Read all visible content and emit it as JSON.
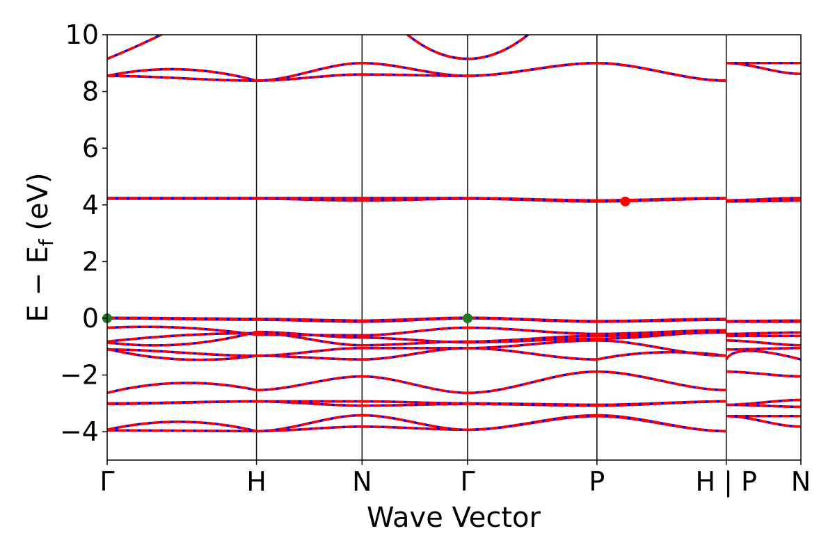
{
  "chart_data": {
    "type": "line",
    "title": "",
    "xlabel": "Wave Vector",
    "ylabel": "E − E_f (eV)",
    "ylim": [
      -5,
      10
    ],
    "y_ticks": [
      -4,
      -2,
      0,
      2,
      4,
      6,
      8,
      10
    ],
    "y_tick_labels": [
      "−4",
      "−2",
      "0",
      "2",
      "4",
      "6",
      "8",
      "10"
    ],
    "x_kpoints": [
      {
        "label": "Γ",
        "x": 0.0
      },
      {
        "label": "H",
        "x": 1.0
      },
      {
        "label": "N",
        "x": 1.707
      },
      {
        "label": "Γ",
        "x": 2.414
      },
      {
        "label": "P",
        "x": 3.28
      },
      {
        "label": "H | P",
        "x": 4.146
      },
      {
        "label": "N",
        "x": 4.646
      }
    ],
    "xlim": [
      0,
      4.646
    ],
    "grid": false,
    "series_colors": {
      "solid": "#0000ff",
      "dashed": "#ff0000"
    },
    "markers": [
      {
        "name": "valence-band-maximum",
        "x": 0.0,
        "y": 0.0,
        "color": "#1f7a1f"
      },
      {
        "name": "valence-band-maximum",
        "x": 2.414,
        "y": 0.0,
        "color": "#1f7a1f"
      },
      {
        "name": "conduction-band-minimum",
        "x": 3.47,
        "y": 4.12,
        "color": "#ff0000"
      }
    ],
    "bands": [
      {
        "segments": [
          [
            [
              0,
              -3.93
            ],
            [
              0.5,
              -3.65
            ],
            [
              1,
              -3.98
            ]
          ],
          [
            [
              1,
              -3.98
            ],
            [
              1.707,
              -3.42
            ]
          ],
          [
            [
              1.707,
              -3.42
            ],
            [
              2.414,
              -3.93
            ]
          ],
          [
            [
              2.414,
              -3.93
            ],
            [
              3.28,
              -3.42
            ]
          ],
          [
            [
              3.28,
              -3.42
            ],
            [
              4.146,
              -3.98
            ]
          ],
          [
            [
              4.146,
              -3.45
            ],
            [
              4.646,
              -3.45
            ]
          ]
        ]
      },
      {
        "segments": [
          [
            [
              0,
              -3.95
            ],
            [
              1,
              -3.98
            ]
          ],
          [
            [
              1,
              -3.98
            ],
            [
              1.707,
              -3.82
            ]
          ],
          [
            [
              1.707,
              -3.82
            ],
            [
              2.414,
              -3.93
            ]
          ],
          [
            [
              2.414,
              -3.93
            ],
            [
              3.28,
              -3.45
            ]
          ],
          [
            [
              3.28,
              -3.45
            ],
            [
              4.146,
              -3.98
            ]
          ],
          [
            [
              4.146,
              -3.45
            ],
            [
              4.646,
              -3.82
            ]
          ]
        ]
      },
      {
        "segments": [
          [
            [
              0,
              -3.0
            ],
            [
              1,
              -2.93
            ]
          ],
          [
            [
              1,
              -2.93
            ],
            [
              1.707,
              -2.93
            ]
          ],
          [
            [
              1.707,
              -2.93
            ],
            [
              2.414,
              -3.0
            ]
          ],
          [
            [
              2.414,
              -3.0
            ],
            [
              3.28,
              -3.05
            ]
          ],
          [
            [
              3.28,
              -3.05
            ],
            [
              4.146,
              -2.93
            ]
          ],
          [
            [
              4.146,
              -3.05
            ],
            [
              4.646,
              -2.88
            ]
          ]
        ]
      },
      {
        "segments": [
          [
            [
              0,
              -3.02
            ],
            [
              1,
              -2.93
            ]
          ],
          [
            [
              1,
              -2.93
            ],
            [
              1.707,
              -3.08
            ]
          ],
          [
            [
              1.707,
              -3.08
            ],
            [
              2.414,
              -3.02
            ]
          ],
          [
            [
              2.414,
              -3.02
            ],
            [
              3.28,
              -3.08
            ]
          ],
          [
            [
              3.28,
              -3.08
            ],
            [
              4.146,
              -2.93
            ]
          ],
          [
            [
              4.146,
              -3.05
            ],
            [
              4.646,
              -3.12
            ]
          ]
        ]
      },
      {
        "segments": [
          [
            [
              0,
              -2.63
            ],
            [
              0.5,
              -2.28
            ],
            [
              1,
              -2.53
            ]
          ],
          [
            [
              1,
              -2.53
            ],
            [
              1.707,
              -2.05
            ]
          ],
          [
            [
              1.707,
              -2.05
            ],
            [
              2.414,
              -2.63
            ]
          ],
          [
            [
              2.414,
              -2.63
            ],
            [
              3.28,
              -1.88
            ]
          ],
          [
            [
              3.28,
              -1.88
            ],
            [
              4.146,
              -2.53
            ]
          ],
          [
            [
              4.146,
              -1.88
            ],
            [
              4.646,
              -2.05
            ]
          ]
        ]
      },
      {
        "segments": [
          [
            [
              0,
              -1.08
            ],
            [
              0.5,
              -1.45
            ],
            [
              1,
              -1.32
            ]
          ],
          [
            [
              1,
              -1.32
            ],
            [
              1.707,
              -1.45
            ]
          ],
          [
            [
              1.707,
              -1.45
            ],
            [
              2.414,
              -1.05
            ]
          ],
          [
            [
              2.414,
              -1.05
            ],
            [
              3.28,
              -1.45
            ]
          ],
          [
            [
              3.28,
              -1.45
            ],
            [
              3.7,
              -1.2
            ],
            [
              4.146,
              -1.32
            ]
          ],
          [
            [
              4.146,
              -1.45
            ],
            [
              4.3,
              -1.15
            ],
            [
              4.646,
              -1.45
            ]
          ]
        ]
      },
      {
        "segments": [
          [
            [
              0,
              -1.1
            ],
            [
              1,
              -1.32
            ]
          ],
          [
            [
              1,
              -1.32
            ],
            [
              1.707,
              -1.05
            ]
          ],
          [
            [
              1.707,
              -1.05
            ],
            [
              2.414,
              -1.05
            ]
          ],
          [
            [
              2.414,
              -1.05
            ],
            [
              3.28,
              -0.78
            ]
          ],
          [
            [
              3.28,
              -0.78
            ],
            [
              4.146,
              -1.32
            ]
          ],
          [
            [
              4.146,
              -1.1
            ],
            [
              4.646,
              -1.05
            ]
          ]
        ]
      },
      {
        "segments": [
          [
            [
              0,
              -0.85
            ],
            [
              0.5,
              -0.92
            ],
            [
              1,
              -0.48
            ]
          ],
          [
            [
              1,
              -0.48
            ],
            [
              1.707,
              -0.68
            ]
          ],
          [
            [
              1.707,
              -0.68
            ],
            [
              2.414,
              -0.85
            ]
          ],
          [
            [
              2.414,
              -0.85
            ],
            [
              3.28,
              -0.72
            ]
          ],
          [
            [
              3.28,
              -0.72
            ],
            [
              4.146,
              -0.48
            ]
          ],
          [
            [
              4.146,
              -0.78
            ],
            [
              4.646,
              -0.95
            ]
          ]
        ]
      },
      {
        "segments": [
          [
            [
              0,
              -0.82
            ],
            [
              0.5,
              -0.6
            ],
            [
              1,
              -0.52
            ]
          ],
          [
            [
              1,
              -0.52
            ],
            [
              1.707,
              -0.95
            ]
          ],
          [
            [
              1.707,
              -0.95
            ],
            [
              2.414,
              -0.82
            ]
          ],
          [
            [
              2.414,
              -0.82
            ],
            [
              3.28,
              -0.62
            ]
          ],
          [
            [
              3.28,
              -0.62
            ],
            [
              4.146,
              -0.5
            ]
          ],
          [
            [
              4.146,
              -0.62
            ],
            [
              4.646,
              -0.62
            ]
          ]
        ]
      },
      {
        "segments": [
          [
            [
              0,
              -0.33
            ],
            [
              0.5,
              -0.33
            ],
            [
              1,
              -0.58
            ]
          ],
          [
            [
              1,
              -0.58
            ],
            [
              1.707,
              -0.6
            ]
          ],
          [
            [
              1.707,
              -0.6
            ],
            [
              2.414,
              -0.33
            ]
          ],
          [
            [
              2.414,
              -0.33
            ],
            [
              3.28,
              -0.55
            ]
          ],
          [
            [
              3.28,
              -0.55
            ],
            [
              4.146,
              -0.42
            ]
          ],
          [
            [
              4.146,
              -0.55
            ],
            [
              4.646,
              -0.5
            ]
          ]
        ]
      },
      {
        "segments": [
          [
            [
              0,
              0.0
            ],
            [
              1,
              -0.05
            ]
          ],
          [
            [
              1,
              -0.05
            ],
            [
              1.707,
              -0.12
            ]
          ],
          [
            [
              1.707,
              -0.12
            ],
            [
              2.414,
              0.0
            ]
          ],
          [
            [
              2.414,
              0.0
            ],
            [
              3.28,
              -0.12
            ]
          ],
          [
            [
              3.28,
              -0.12
            ],
            [
              4.146,
              -0.05
            ]
          ],
          [
            [
              4.146,
              -0.12
            ],
            [
              4.646,
              -0.12
            ]
          ]
        ]
      },
      {
        "segments": [
          [
            [
              0,
              0.02
            ],
            [
              1,
              -0.02
            ]
          ],
          [
            [
              1,
              -0.02
            ],
            [
              1.707,
              -0.08
            ]
          ],
          [
            [
              1.707,
              -0.08
            ],
            [
              2.414,
              0.02
            ]
          ],
          [
            [
              2.414,
              0.02
            ],
            [
              3.28,
              -0.1
            ]
          ],
          [
            [
              3.28,
              -0.1
            ],
            [
              4.146,
              -0.02
            ]
          ],
          [
            [
              4.146,
              -0.1
            ],
            [
              4.646,
              -0.08
            ]
          ]
        ]
      },
      {
        "segments": [
          [
            [
              0,
              4.22
            ],
            [
              1,
              4.22
            ]
          ],
          [
            [
              1,
              4.22
            ],
            [
              1.707,
              4.15
            ]
          ],
          [
            [
              1.707,
              4.15
            ],
            [
              2.414,
              4.22
            ]
          ],
          [
            [
              2.414,
              4.22
            ],
            [
              3.28,
              4.12
            ]
          ],
          [
            [
              3.28,
              4.12
            ],
            [
              4.146,
              4.22
            ]
          ],
          [
            [
              4.146,
              4.12
            ],
            [
              4.646,
              4.15
            ]
          ]
        ]
      },
      {
        "segments": [
          [
            [
              0,
              4.24
            ],
            [
              1,
              4.24
            ]
          ],
          [
            [
              1,
              4.24
            ],
            [
              1.707,
              4.24
            ]
          ],
          [
            [
              1.707,
              4.24
            ],
            [
              2.414,
              4.24
            ]
          ],
          [
            [
              2.414,
              4.24
            ],
            [
              3.28,
              4.16
            ]
          ],
          [
            [
              3.28,
              4.16
            ],
            [
              4.146,
              4.24
            ]
          ],
          [
            [
              4.146,
              4.16
            ],
            [
              4.646,
              4.24
            ]
          ]
        ]
      },
      {
        "segments": [
          [
            [
              0,
              8.55
            ],
            [
              0.5,
              8.78
            ],
            [
              1,
              8.38
            ]
          ],
          [
            [
              1,
              8.38
            ],
            [
              1.707,
              9.0
            ]
          ],
          [
            [
              1.707,
              9.0
            ],
            [
              2.414,
              8.55
            ]
          ],
          [
            [
              2.414,
              8.55
            ],
            [
              3.28,
              9.0
            ]
          ],
          [
            [
              3.28,
              9.0
            ],
            [
              4.146,
              8.38
            ]
          ],
          [
            [
              4.146,
              9.0
            ],
            [
              4.646,
              9.0
            ]
          ]
        ]
      },
      {
        "segments": [
          [
            [
              0,
              8.55
            ],
            [
              1,
              8.38
            ]
          ],
          [
            [
              1,
              8.38
            ],
            [
              1.707,
              8.6
            ]
          ],
          [
            [
              1.707,
              8.6
            ],
            [
              2.414,
              8.55
            ]
          ],
          [
            [
              2.414,
              8.55
            ],
            [
              3.28,
              9.0
            ]
          ],
          [
            [
              3.28,
              9.0
            ],
            [
              4.146,
              8.38
            ]
          ],
          [
            [
              4.146,
              9.0
            ],
            [
              4.646,
              8.62
            ]
          ]
        ]
      },
      {
        "segments": [
          [
            [
              0,
              9.15
            ],
            [
              0.2,
              9.6
            ],
            [
              0.38,
              10.05
            ]
          ],
          [
            [
              2.0,
              10.05
            ],
            [
              2.414,
              9.15
            ],
            [
              2.83,
              10.05
            ]
          ]
        ]
      }
    ]
  }
}
